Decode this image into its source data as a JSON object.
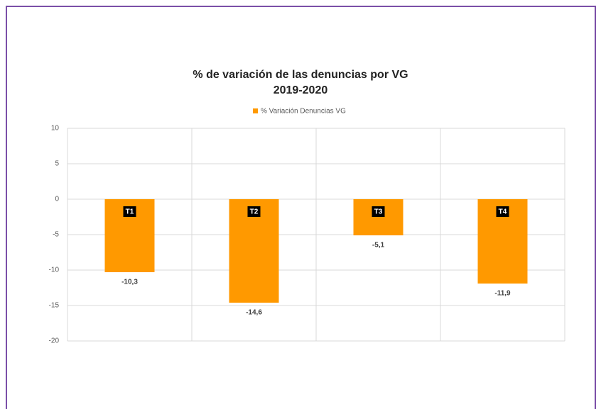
{
  "chart_data": {
    "type": "bar",
    "title": "% de variación de las denuncias por VG",
    "subtitle": "2019-2020",
    "categories": [
      "T1",
      "T2",
      "T3",
      "T4"
    ],
    "series": [
      {
        "name": "% Variación Denuncias VG",
        "color": "#ff9900",
        "values": [
          -10.3,
          -14.6,
          -5.1,
          -11.9
        ],
        "value_labels": [
          "-10,3",
          "-14,6",
          "-5,1",
          "-11,9"
        ]
      }
    ],
    "ylim": [
      -20,
      10
    ],
    "yticks": [
      10,
      5,
      0,
      -5,
      -10,
      -15,
      -20
    ],
    "grid": true
  }
}
